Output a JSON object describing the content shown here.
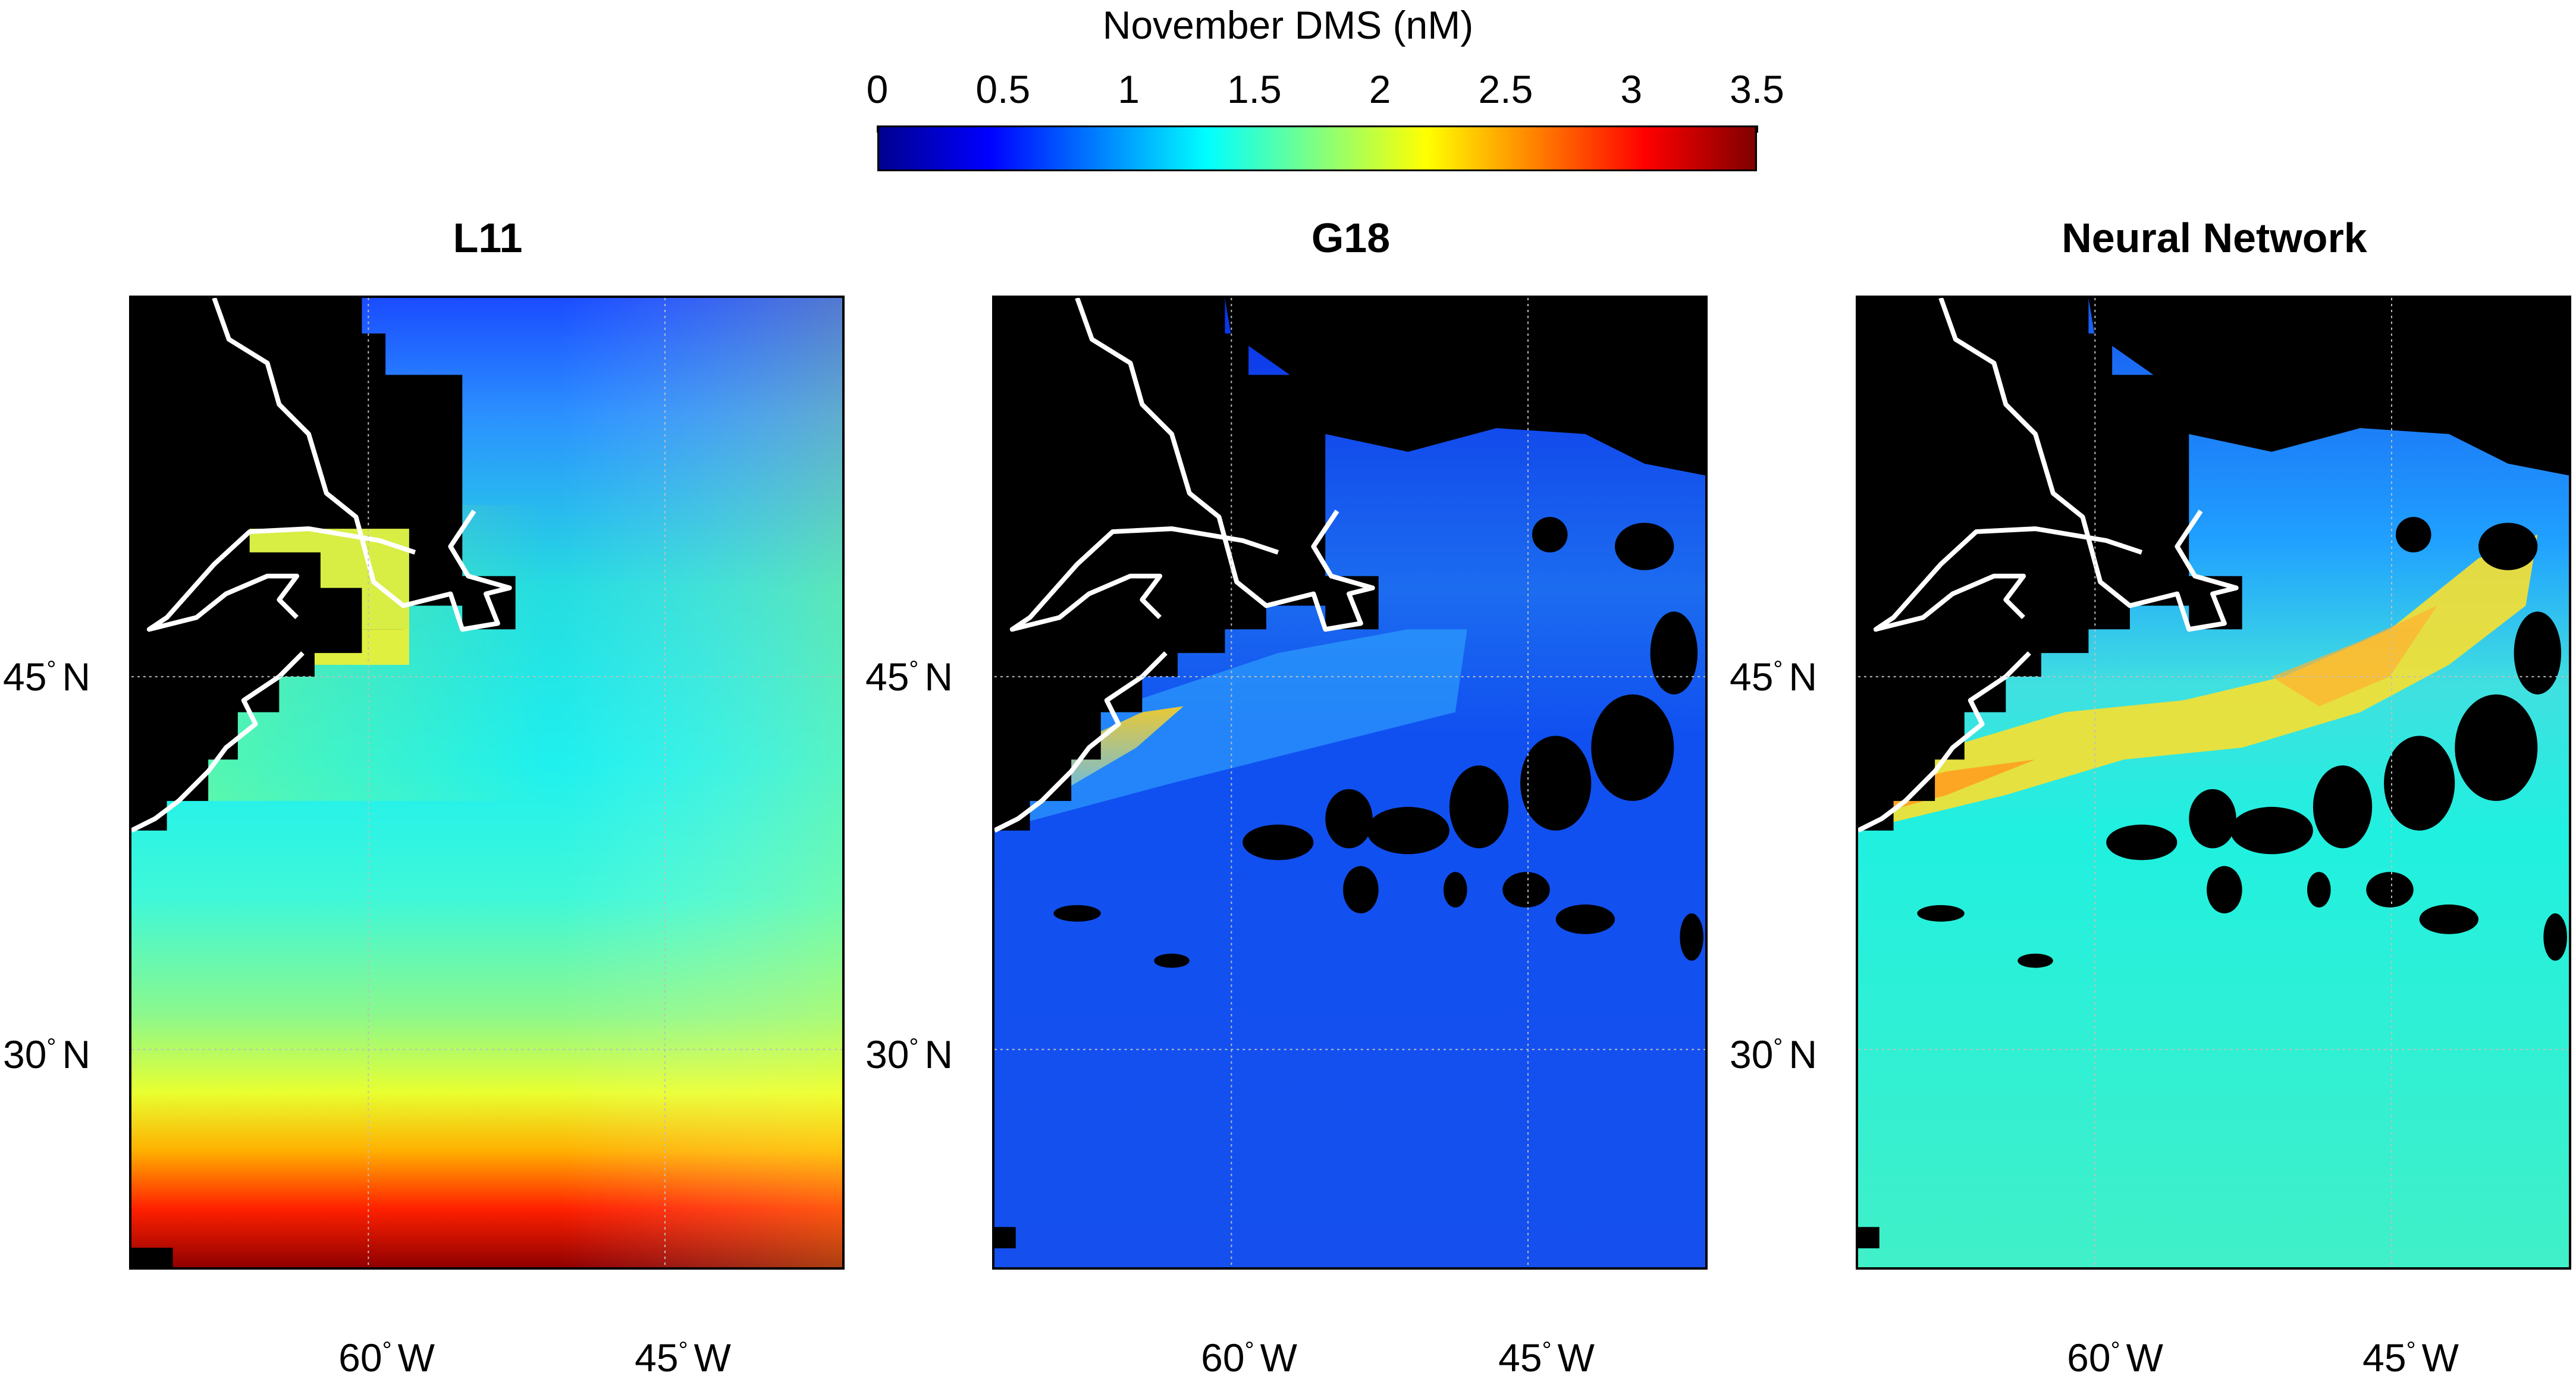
{
  "colorbar": {
    "title": "November DMS (nM)",
    "ticks": [
      "0",
      "0.5",
      "1",
      "1.5",
      "2",
      "2.5",
      "3",
      "3.5"
    ],
    "range": [
      0,
      3.5
    ],
    "colormap": "jet"
  },
  "axes": {
    "lat_labels": [
      {
        "deg": "45",
        "hemi": "N"
      },
      {
        "deg": "30",
        "hemi": "N"
      }
    ],
    "lon_labels": [
      {
        "deg": "60",
        "hemi": "W"
      },
      {
        "deg": "45",
        "hemi": "W"
      }
    ]
  },
  "panels": [
    {
      "title": "L11"
    },
    {
      "title": "G18"
    },
    {
      "title": "Neural Network"
    }
  ],
  "colors": {
    "land": "#000000",
    "coastline": "#ffffff",
    "grid": "#bfbfbf"
  }
}
